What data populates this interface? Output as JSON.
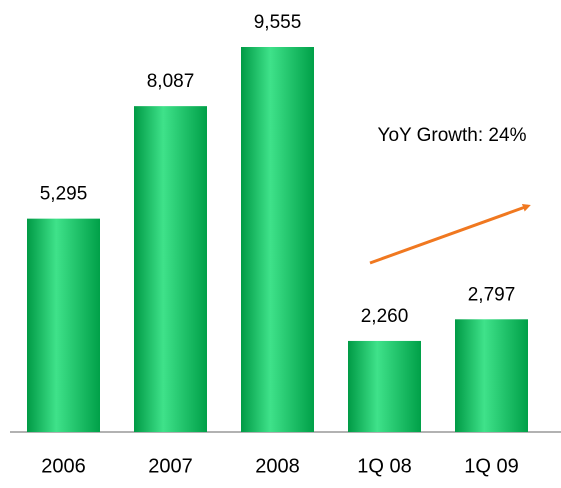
{
  "chart_data": {
    "type": "bar",
    "categories": [
      "2006",
      "2007",
      "2008",
      "1Q 08",
      "1Q 09"
    ],
    "values": [
      5295,
      8087,
      9555,
      2260,
      2797
    ],
    "value_labels": [
      "5,295",
      "8,087",
      "9,555",
      "2,260",
      "2,797"
    ],
    "color": "#00b050",
    "annotation": "YoY Growth: 24%"
  }
}
